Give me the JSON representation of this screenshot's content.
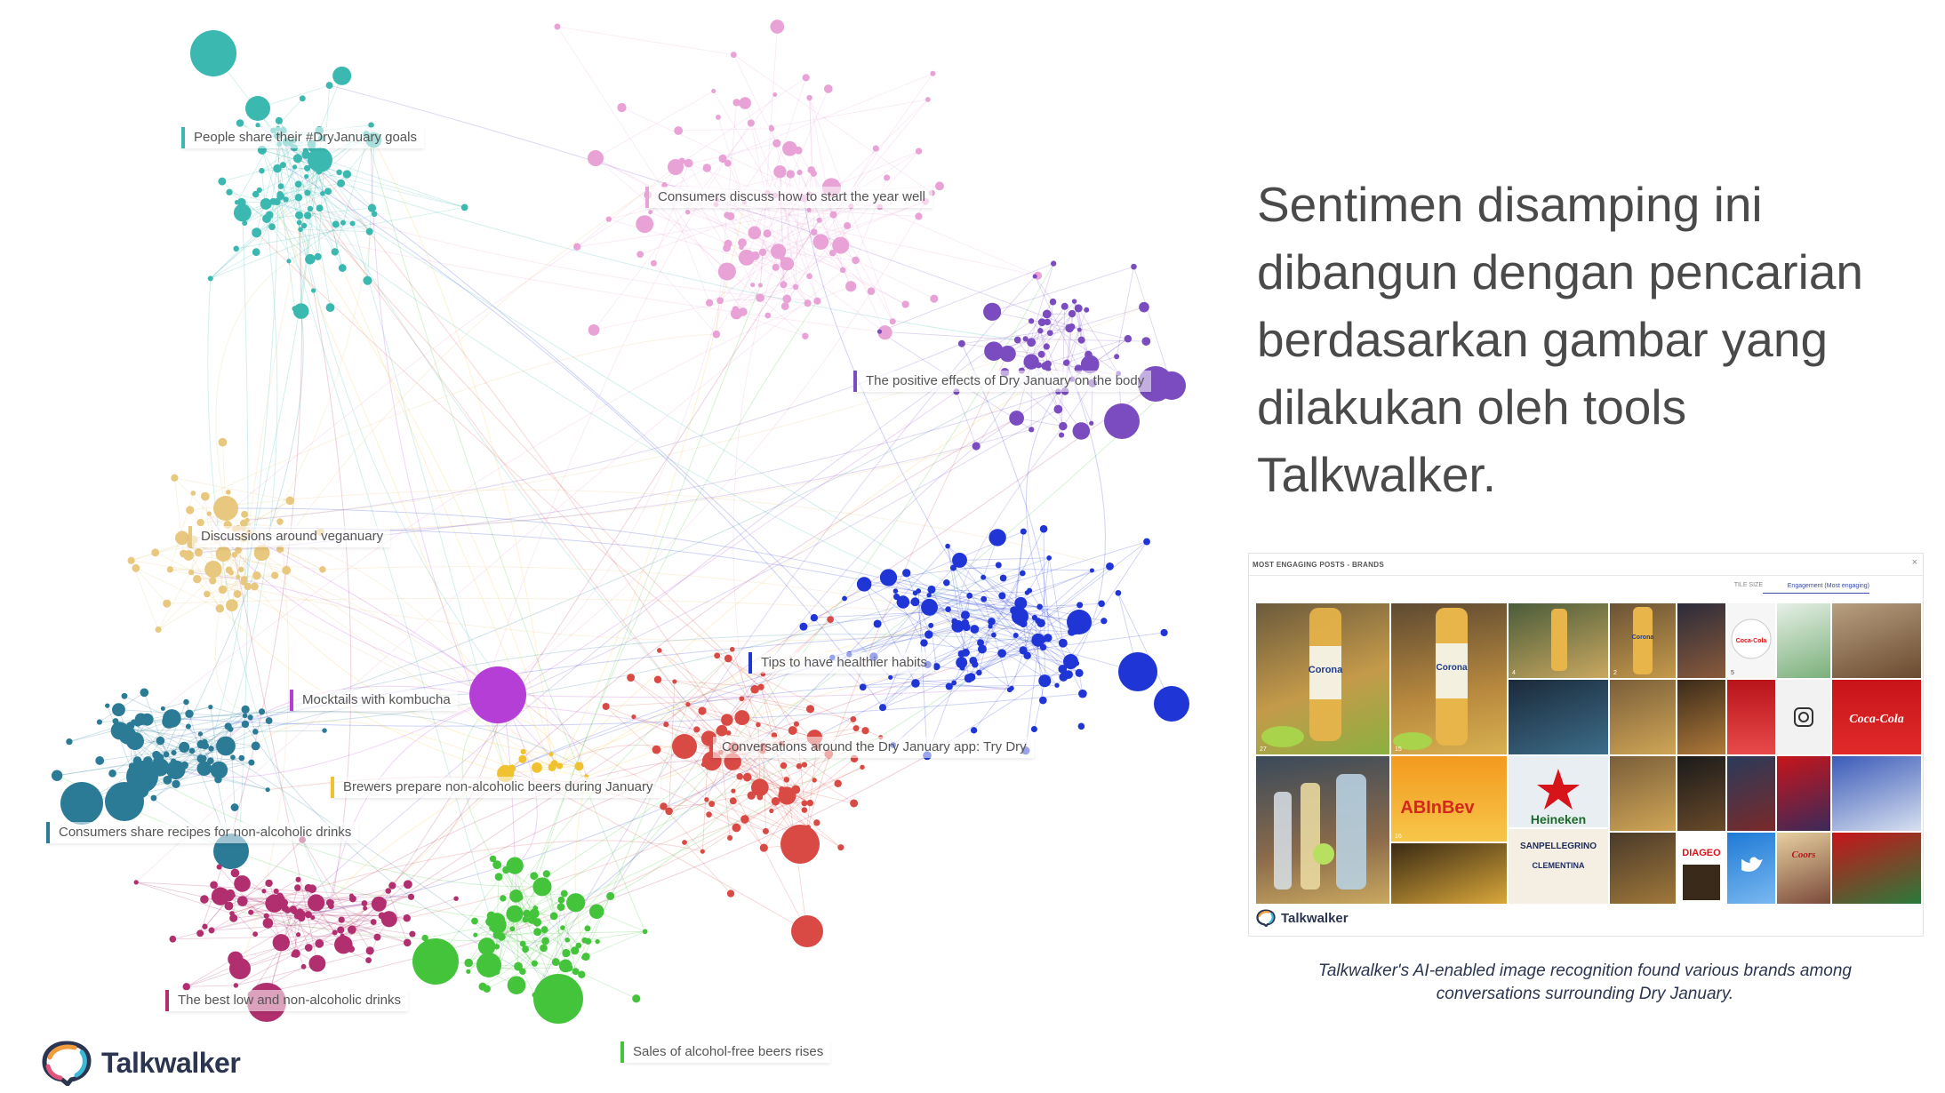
{
  "network": {
    "labels": [
      {
        "text": "People share their #DryJanuary goals",
        "color": "#3bb8b0"
      },
      {
        "text": "Consumers discuss how to start the year well",
        "color": "#e9a2d6"
      },
      {
        "text": "The positive effects of Dry January on the body",
        "color": "#7a4cbf"
      },
      {
        "text": "Discussions around veganuary",
        "color": "#e8c77e"
      },
      {
        "text": "Tips to have healthier habits",
        "color": "#1f35d6"
      },
      {
        "text": "Mocktails with kombucha",
        "color": "#b53fd6"
      },
      {
        "text": "Conversations around the Dry January app: Try Dry",
        "color": "#d94a45"
      },
      {
        "text": "Brewers prepare non-alcoholic beers during January",
        "color": "#f0c230"
      },
      {
        "text": "Consumers share recipes for non-alcoholic drinks",
        "color": "#2b7b97"
      },
      {
        "text": "The best low and non-alcoholic drinks",
        "color": "#b12f6e"
      },
      {
        "text": "Sales of alcohol-free beers rises",
        "color": "#43c43a"
      }
    ],
    "clusters": [
      {
        "color": "#3bb8b0",
        "big": 1
      },
      {
        "color": "#e9a2d6",
        "big": 0
      },
      {
        "color": "#7a4cbf",
        "big": 1
      },
      {
        "color": "#e8c77e",
        "big": 0
      },
      {
        "color": "#1f35d6",
        "big": 1
      },
      {
        "color": "#b53fd6",
        "big": 1
      },
      {
        "color": "#d94a45",
        "big": 1
      },
      {
        "color": "#f0c230",
        "big": 0
      },
      {
        "color": "#2b7b97",
        "big": 1
      },
      {
        "color": "#b12f6e",
        "big": 1
      },
      {
        "color": "#43c43a",
        "big": 1
      }
    ]
  },
  "brand": {
    "name": "Talkwalker"
  },
  "headline": [
    "Sentimen disamping ini",
    "dibangun dengan pencarian",
    "berdasarkan gambar yang",
    "dilakukan oleh tools",
    "Talkwalker."
  ],
  "dashboard": {
    "header": "MOST ENGAGING POSTS - BRANDS",
    "tile_size_label": "TILE SIZE",
    "sort_label": "Engagement (Most engaging)",
    "close_icon": "×",
    "tiles": [
      {
        "label": "Corona",
        "count": "27"
      },
      {
        "label": "Corona",
        "count": "15"
      },
      {
        "label": "",
        "count": "4"
      },
      {
        "label": "Corona",
        "count": "2"
      },
      {
        "label": "Coca-Cola",
        "count": "5"
      },
      {
        "label": "Coca-Cola",
        "count": ""
      },
      {
        "label": "ABInBev",
        "count": "16"
      },
      {
        "label": "Heineken",
        "count": ""
      },
      {
        "label": "SANPELLEGRINO",
        "count": ""
      },
      {
        "label": "CLEMENTINA",
        "count": ""
      },
      {
        "label": "DIAGEO",
        "count": ""
      },
      {
        "label": "Coors",
        "count": ""
      }
    ],
    "footer_brand": "Talkwalker"
  },
  "caption": {
    "line1": "Talkwalker's AI-enabled image recognition found various brands among",
    "line2": "conversations surrounding Dry January."
  }
}
